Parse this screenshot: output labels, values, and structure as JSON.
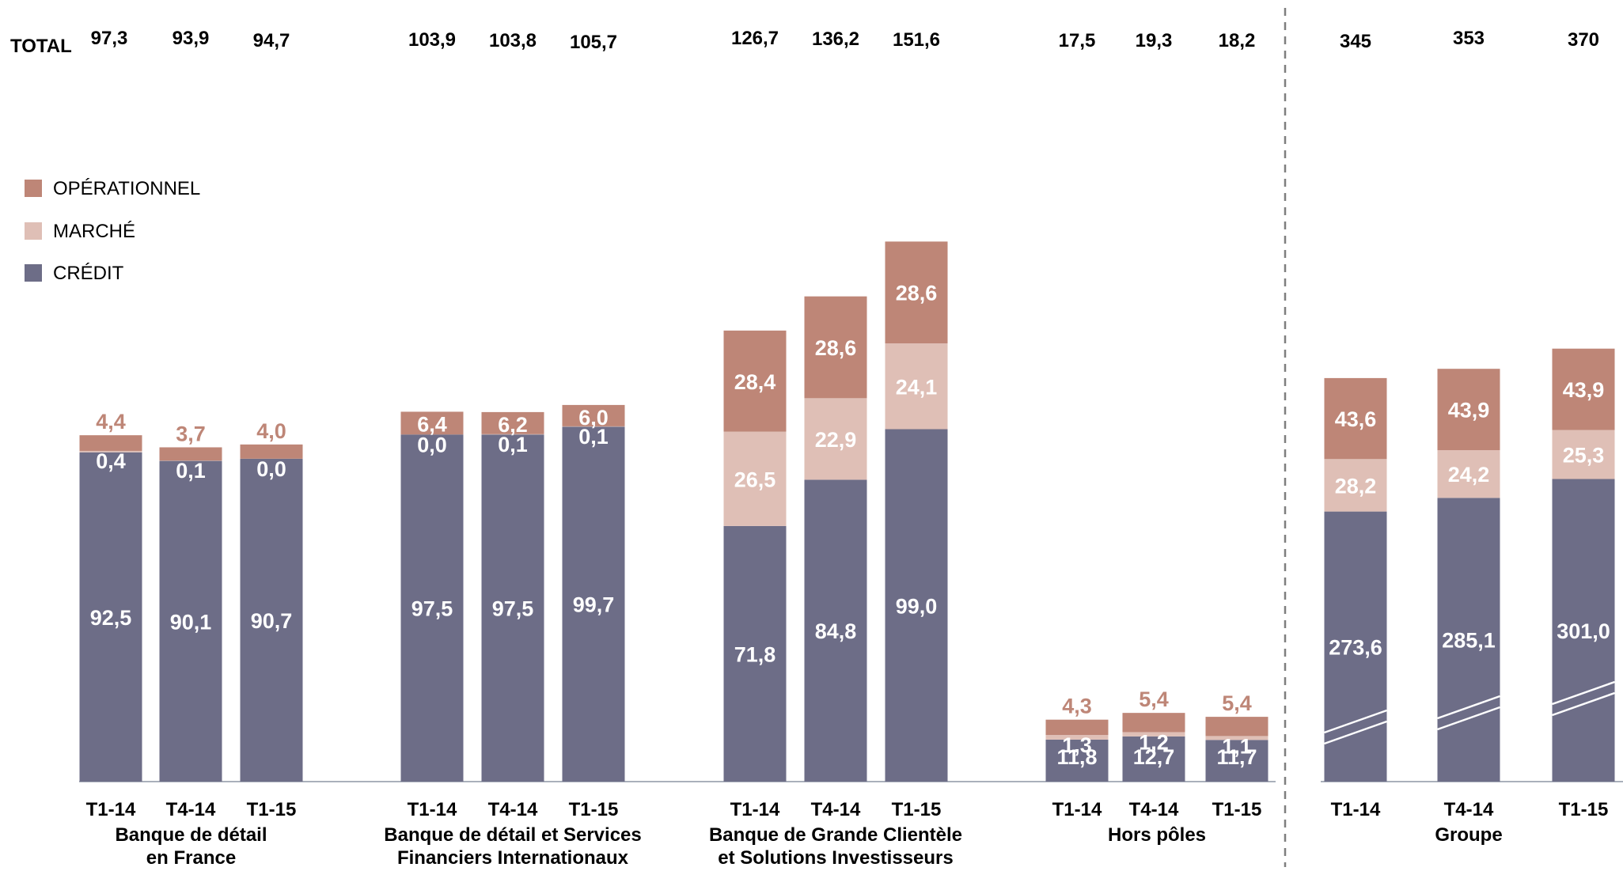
{
  "chart_data": {
    "type": "bar",
    "stacked": true,
    "total_prefix": "TOTAL",
    "legend_placement": "left",
    "legend": [
      {
        "key": "operationnel",
        "label": "OPÉRATIONNEL",
        "color": "#be8677"
      },
      {
        "key": "marche",
        "label": "MARCHÉ",
        "color": "#dfbfb6"
      },
      {
        "key": "credit",
        "label": "CRÉDIT",
        "color": "#6d6d87"
      }
    ],
    "series": [
      {
        "name": "CRÉDIT",
        "key": "credit"
      },
      {
        "name": "MARCHÉ",
        "key": "marche"
      },
      {
        "name": "OPÉRATIONNEL",
        "key": "operationnel"
      }
    ],
    "groups": [
      {
        "label_lines": [
          "Banque de détail",
          "en France"
        ],
        "bars": [
          {
            "tick": "T1-14",
            "total": "97,3",
            "credit": 92.5,
            "marche": 0.4,
            "operationnel": 4.4,
            "credit_label": "92,5",
            "marche_label": "0,4",
            "operationnel_label": "4,4"
          },
          {
            "tick": "T4-14",
            "total": "93,9",
            "credit": 90.1,
            "marche": 0.1,
            "operationnel": 3.7,
            "credit_label": "90,1",
            "marche_label": "0,1",
            "operationnel_label": "3,7"
          },
          {
            "tick": "T1-15",
            "total": "94,7",
            "credit": 90.7,
            "marche": 0.0,
            "operationnel": 4.0,
            "credit_label": "90,7",
            "marche_label": "0,0",
            "operationnel_label": "4,0"
          }
        ]
      },
      {
        "label_lines": [
          "Banque de détail et Services",
          "Financiers Internationaux"
        ],
        "bars": [
          {
            "tick": "T1-14",
            "total": "103,9",
            "credit": 97.5,
            "marche": 0.0,
            "operationnel": 6.4,
            "credit_label": "97,5",
            "marche_label": "0,0",
            "operationnel_label": "6,4"
          },
          {
            "tick": "T4-14",
            "total": "103,8",
            "credit": 97.5,
            "marche": 0.1,
            "operationnel": 6.2,
            "credit_label": "97,5",
            "marche_label": "0,1",
            "operationnel_label": "6,2"
          },
          {
            "tick": "T1-15",
            "total": "105,7",
            "credit": 99.7,
            "marche": 0.1,
            "operationnel": 6.0,
            "credit_label": "99,7",
            "marche_label": "0,1",
            "operationnel_label": "6,0"
          }
        ]
      },
      {
        "label_lines": [
          "Banque de Grande Clientèle",
          "et Solutions Investisseurs"
        ],
        "bars": [
          {
            "tick": "T1-14",
            "total": "126,7",
            "credit": 71.8,
            "marche": 26.5,
            "operationnel": 28.4,
            "credit_label": "71,8",
            "marche_label": "26,5",
            "operationnel_label": "28,4"
          },
          {
            "tick": "T4-14",
            "total": "136,2",
            "credit": 84.8,
            "marche": 22.9,
            "operationnel": 28.6,
            "credit_label": "84,8",
            "marche_label": "22,9",
            "operationnel_label": "28,6"
          },
          {
            "tick": "T1-15",
            "total": "151,6",
            "credit": 99.0,
            "marche": 24.1,
            "operationnel": 28.6,
            "credit_label": "99,0",
            "marche_label": "24,1",
            "operationnel_label": "28,6"
          }
        ]
      },
      {
        "label_lines": [
          "Hors pôles"
        ],
        "bars": [
          {
            "tick": "T1-14",
            "total": "17,5",
            "credit": 11.8,
            "marche": 1.3,
            "operationnel": 4.3,
            "credit_label": "11,8",
            "marche_label": "1,3",
            "operationnel_label": "4,3"
          },
          {
            "tick": "T4-14",
            "total": "19,3",
            "credit": 12.7,
            "marche": 1.2,
            "operationnel": 5.4,
            "credit_label": "12,7",
            "marche_label": "1,2",
            "operationnel_label": "5,4"
          },
          {
            "tick": "T1-15",
            "total": "18,2",
            "credit": 11.7,
            "marche": 1.1,
            "operationnel": 5.4,
            "credit_label": "11,7",
            "marche_label": "1,1",
            "operationnel_label": "5,4"
          }
        ]
      }
    ],
    "groupe": {
      "label_lines": [
        "Groupe"
      ],
      "axis_break": true,
      "bars": [
        {
          "tick": "T1-14",
          "total": "345",
          "credit": 273.6,
          "marche": 28.2,
          "operationnel": 43.6,
          "credit_label": "273,6",
          "marche_label": "28,2",
          "operationnel_label": "43,6"
        },
        {
          "tick": "T4-14",
          "total": "353",
          "credit": 285.1,
          "marche": 24.2,
          "operationnel": 43.9,
          "credit_label": "285,1",
          "marche_label": "24,2",
          "operationnel_label": "43,9"
        },
        {
          "tick": "T1-15",
          "total": "370",
          "credit": 301.0,
          "marche": 25.3,
          "operationnel": 43.9,
          "credit_label": "301,0",
          "marche_label": "25,3",
          "operationnel_label": "43,9"
        }
      ]
    }
  }
}
